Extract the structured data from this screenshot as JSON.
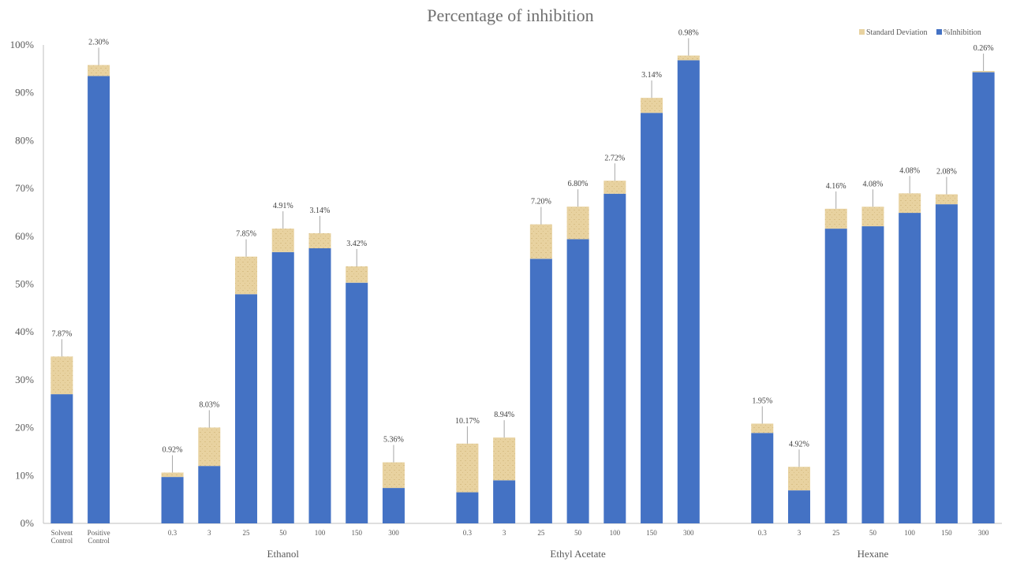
{
  "chart_data": {
    "type": "bar",
    "stacked": true,
    "title": "Percentage of inhibition",
    "ylim": [
      0,
      100
    ],
    "yticks": [
      "0%",
      "10%",
      "20%",
      "30%",
      "40%",
      "50%",
      "60%",
      "70%",
      "80%",
      "90%",
      "100%"
    ],
    "legend_position": "top-right",
    "grid": false,
    "colors": {
      "inhibition": "#4472c4",
      "sd": "#e8d2a0",
      "sd_dark": "#d9bf86"
    },
    "series": [
      {
        "name": "%Inhibition",
        "values": [
          27.0,
          93.5,
          null,
          9.7,
          12.0,
          47.9,
          56.7,
          57.5,
          50.3,
          7.4,
          null,
          6.5,
          9.0,
          55.3,
          59.4,
          68.9,
          85.8,
          96.8,
          null,
          18.9,
          6.9,
          61.6,
          62.1,
          64.9,
          66.7,
          94.3
        ]
      },
      {
        "name": "Standard Deviation",
        "values": [
          7.87,
          2.3,
          null,
          0.92,
          8.03,
          7.85,
          4.91,
          3.14,
          3.42,
          5.36,
          null,
          10.17,
          8.94,
          7.2,
          6.8,
          2.72,
          3.14,
          0.98,
          null,
          1.95,
          4.92,
          4.16,
          4.08,
          4.08,
          2.08,
          0.26
        ]
      }
    ],
    "categories": [
      [
        "Solvent",
        "Control"
      ],
      [
        "Positive",
        "Control"
      ],
      [
        ""
      ],
      [
        "0.3"
      ],
      [
        "3"
      ],
      [
        "25"
      ],
      [
        "50"
      ],
      [
        "100"
      ],
      [
        "150"
      ],
      [
        "300"
      ],
      [
        ""
      ],
      [
        "0.3"
      ],
      [
        "3"
      ],
      [
        "25"
      ],
      [
        "50"
      ],
      [
        "100"
      ],
      [
        "150"
      ],
      [
        "300"
      ],
      [
        ""
      ],
      [
        "0.3"
      ],
      [
        "3"
      ],
      [
        "25"
      ],
      [
        "50"
      ],
      [
        "100"
      ],
      [
        "150"
      ],
      [
        "300"
      ]
    ],
    "data_labels": [
      "7.87%",
      "2.30%",
      "",
      "0.92%",
      "8.03%",
      "7.85%",
      "4.91%",
      "3.14%",
      "3.42%",
      "5.36%",
      "",
      "10.17%",
      "8.94%",
      "7.20%",
      "6.80%",
      "2.72%",
      "3.14%",
      "0.98%",
      "",
      "1.95%",
      "4.92%",
      "4.16%",
      "4.08%",
      "4.08%",
      "2.08%",
      "0.26%"
    ],
    "groups": [
      {
        "label": "Ethanol",
        "from": 3,
        "to": 9
      },
      {
        "label": "Ethyl Acetate",
        "from": 11,
        "to": 17
      },
      {
        "label": "Hexane",
        "from": 19,
        "to": 25
      }
    ]
  }
}
